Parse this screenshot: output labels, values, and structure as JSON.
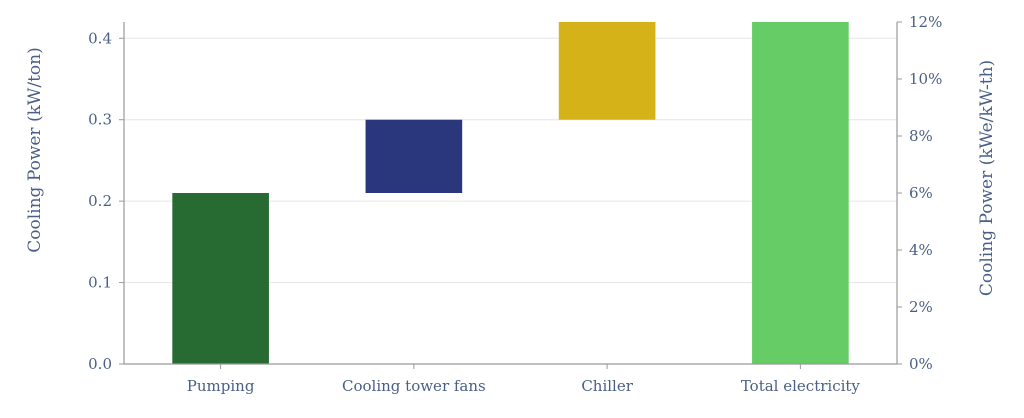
{
  "chart_data": {
    "type": "bar",
    "subtype": "waterfall",
    "categories": [
      "Pumping",
      "Cooling tower fans",
      "Chiller",
      "Total electricity"
    ],
    "bars": [
      {
        "category": "Pumping",
        "base": 0.0,
        "top": 0.21,
        "color": "#276b33"
      },
      {
        "category": "Cooling tower fans",
        "base": 0.21,
        "top": 0.3,
        "color": "#2b377d"
      },
      {
        "category": "Chiller",
        "base": 0.3,
        "top": 0.42,
        "color": "#d5b318"
      },
      {
        "category": "Total electricity",
        "base": 0.0,
        "top": 0.42,
        "color": "#66cd66"
      }
    ],
    "ylabel": "Cooling Power (kW/ton)",
    "y2label": "Cooling Power (kWe/kW-th)",
    "ylim": [
      0,
      0.42
    ],
    "y2lim": [
      0,
      0.12
    ],
    "yticks": [
      0.0,
      0.1,
      0.2,
      0.3,
      0.4
    ],
    "ytick_labels": [
      "0.0",
      "0.1",
      "0.2",
      "0.3",
      "0.4"
    ],
    "y2ticks": [
      0,
      0.02,
      0.04,
      0.06,
      0.08,
      0.1,
      0.12
    ],
    "y2tick_labels": [
      "0%",
      "2%",
      "4%",
      "6%",
      "8%",
      "10%",
      "12%"
    ],
    "grid": true
  }
}
